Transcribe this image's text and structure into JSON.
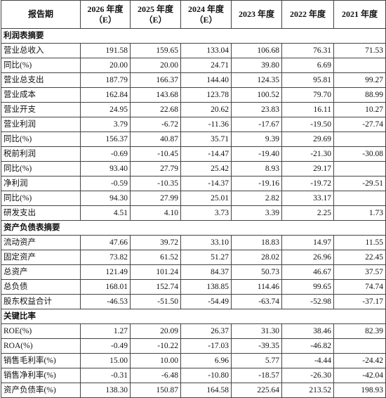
{
  "header": {
    "period_label": "报告期",
    "columns": [
      {
        "year": "2026 年度",
        "note": "（E）"
      },
      {
        "year": "2025 年度",
        "note": "（E）"
      },
      {
        "year": "2024 年度",
        "note": "（E）"
      },
      {
        "year": "2023 年度",
        "note": ""
      },
      {
        "year": "2022 年度",
        "note": ""
      },
      {
        "year": "2021 年度",
        "note": ""
      }
    ]
  },
  "sections": [
    {
      "title": "利润表摘要",
      "rows": [
        {
          "label": "营业总收入",
          "values": [
            "191.58",
            "159.65",
            "133.04",
            "106.68",
            "76.31",
            "71.53"
          ]
        },
        {
          "label": "同比(%)",
          "values": [
            "20.00",
            "20.00",
            "24.71",
            "39.80",
            "6.69",
            ""
          ]
        },
        {
          "label": "营业总支出",
          "values": [
            "187.79",
            "166.37",
            "144.40",
            "124.35",
            "95.81",
            "99.27"
          ]
        },
        {
          "label": "营业成本",
          "values": [
            "162.84",
            "143.68",
            "123.78",
            "100.52",
            "79.70",
            "88.99"
          ]
        },
        {
          "label": "营业开支",
          "values": [
            "24.95",
            "22.68",
            "20.62",
            "23.83",
            "16.11",
            "10.27"
          ]
        },
        {
          "label": "营业利润",
          "values": [
            "3.79",
            "-6.72",
            "-11.36",
            "-17.67",
            "-19.50",
            "-27.74"
          ]
        },
        {
          "label": "同比(%)",
          "values": [
            "156.37",
            "40.87",
            "35.71",
            "9.39",
            "29.69",
            ""
          ]
        },
        {
          "label": "税前利润",
          "values": [
            "-0.69",
            "-10.45",
            "-14.47",
            "-19.40",
            "-21.30",
            "-30.08"
          ]
        },
        {
          "label": "同比(%)",
          "values": [
            "93.40",
            "27.79",
            "25.42",
            "8.93",
            "29.17",
            ""
          ]
        },
        {
          "label": "净利润",
          "values": [
            "-0.59",
            "-10.35",
            "-14.37",
            "-19.16",
            "-19.72",
            "-29.51"
          ]
        },
        {
          "label": "同比(%)",
          "values": [
            "94.30",
            "27.99",
            "25.01",
            "2.82",
            "33.17",
            ""
          ]
        },
        {
          "label": "研发支出",
          "values": [
            "4.51",
            "4.10",
            "3.73",
            "3.39",
            "2.25",
            "1.73"
          ]
        }
      ]
    },
    {
      "title": "资产负债表摘要",
      "rows": [
        {
          "label": "流动资产",
          "values": [
            "47.66",
            "39.72",
            "33.10",
            "18.83",
            "14.97",
            "11.55"
          ]
        },
        {
          "label": "固定资产",
          "values": [
            "73.82",
            "61.52",
            "51.27",
            "28.02",
            "26.96",
            "22.45"
          ]
        },
        {
          "label": "总资产",
          "values": [
            "121.49",
            "101.24",
            "84.37",
            "50.73",
            "46.67",
            "37.57"
          ]
        },
        {
          "label": "总负债",
          "values": [
            "168.01",
            "152.74",
            "138.85",
            "114.46",
            "99.65",
            "74.74"
          ]
        },
        {
          "label": "股东权益合计",
          "values": [
            "-46.53",
            "-51.50",
            "-54.49",
            "-63.74",
            "-52.98",
            "-37.17"
          ]
        }
      ]
    },
    {
      "title": "关键比率",
      "rows": [
        {
          "label": "ROE(%)",
          "values": [
            "1.27",
            "20.09",
            "26.37",
            "31.30",
            "38.46",
            "82.39"
          ]
        },
        {
          "label": "ROA(%)",
          "values": [
            "-0.49",
            "-10.22",
            "-17.03",
            "-39.35",
            "-46.82",
            ""
          ]
        },
        {
          "label": "销售毛利率(%)",
          "values": [
            "15.00",
            "10.00",
            "6.96",
            "5.77",
            "-4.44",
            "-24.42"
          ]
        },
        {
          "label": "销售净利率(%)",
          "values": [
            "-0.31",
            "-6.48",
            "-10.80",
            "-18.57",
            "-26.30",
            "-42.04"
          ]
        },
        {
          "label": "资产负债率(%)",
          "values": [
            "138.30",
            "150.87",
            "164.58",
            "225.64",
            "213.52",
            "198.93"
          ]
        }
      ]
    }
  ]
}
